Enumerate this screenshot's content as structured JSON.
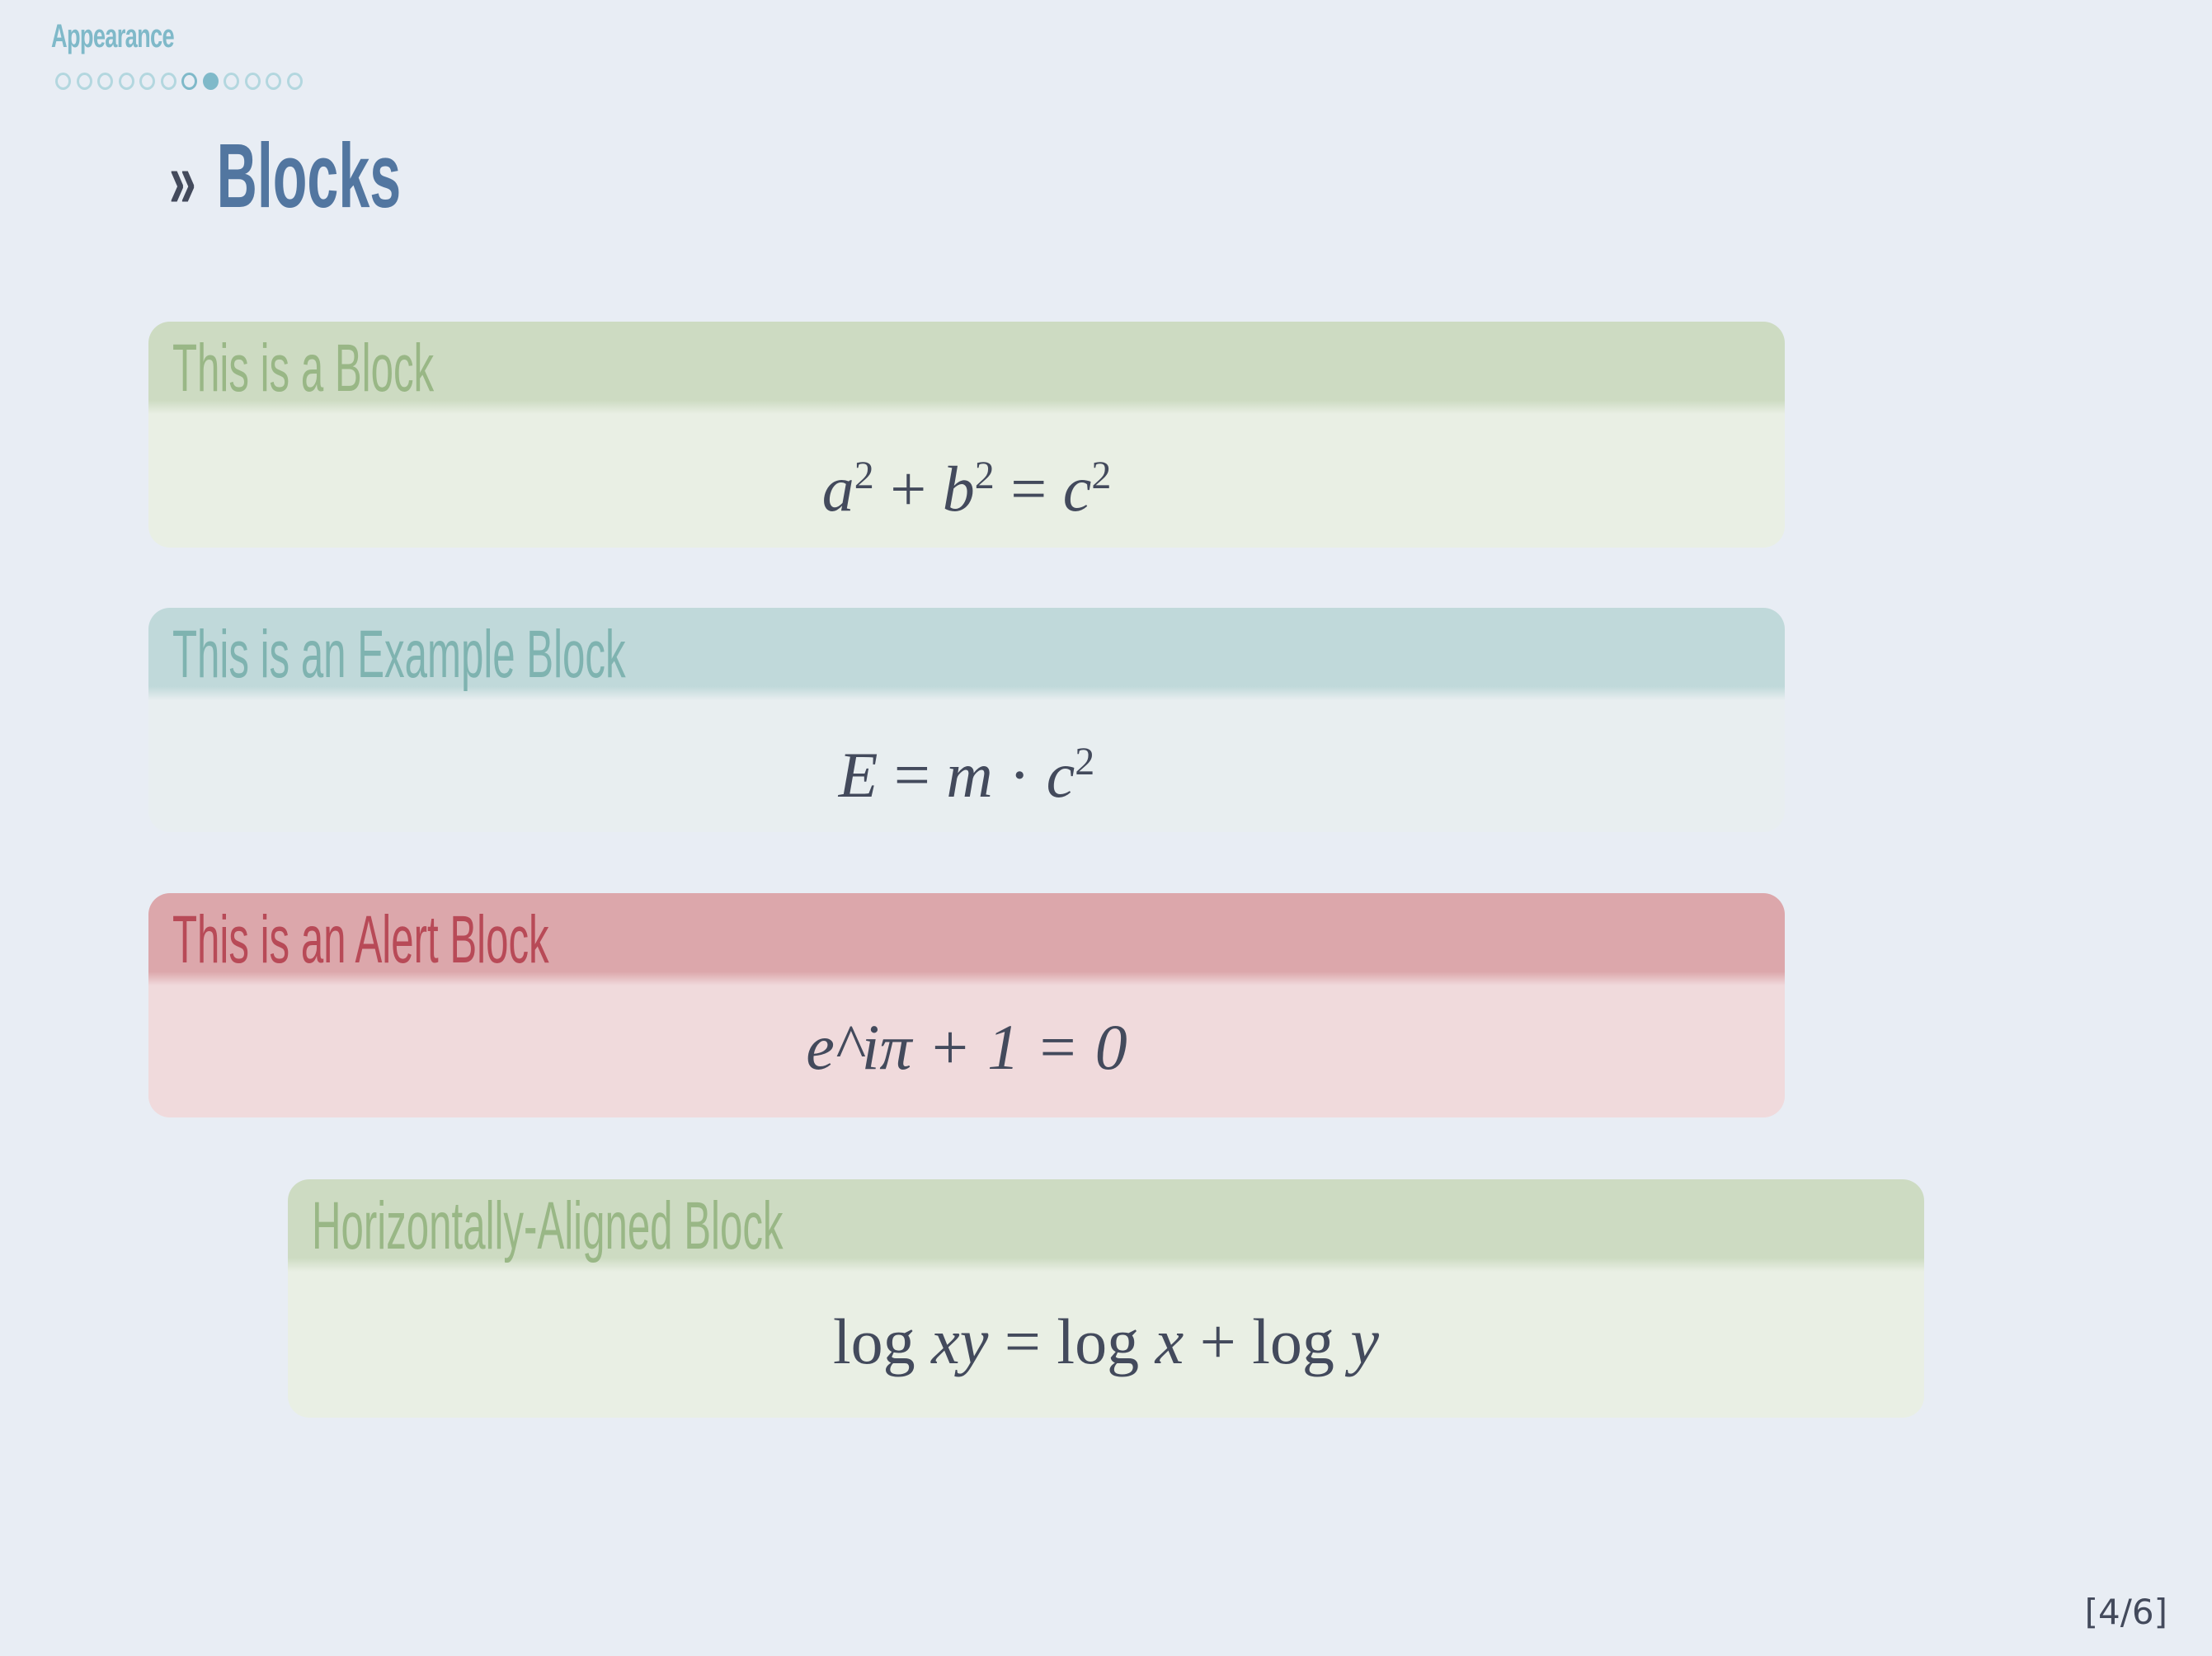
{
  "nav": {
    "section": "Appearance",
    "frame_count": 12,
    "current_index": 7,
    "visited_index": 6
  },
  "slide": {
    "title_marker": "»",
    "title": "Blocks"
  },
  "blocks": [
    {
      "kind": "block",
      "title": "This is a Block",
      "formula": "a² + b² = c²"
    },
    {
      "kind": "example",
      "title": "This is an Example Block",
      "formula": "E = m · c²"
    },
    {
      "kind": "alert",
      "title": "This is an Alert Block",
      "formula": "e^iπ + 1 = 0"
    },
    {
      "kind": "block",
      "title": "Horizontally-Aligned Block",
      "formula": "log xy = log x + log y"
    }
  ],
  "footer": {
    "page": "[4/6]"
  },
  "colors": {
    "background": "#e8edf4",
    "title": "#5276a0",
    "block": "#99b786",
    "example": "#7fb3b0",
    "alert": "#b84a57"
  }
}
